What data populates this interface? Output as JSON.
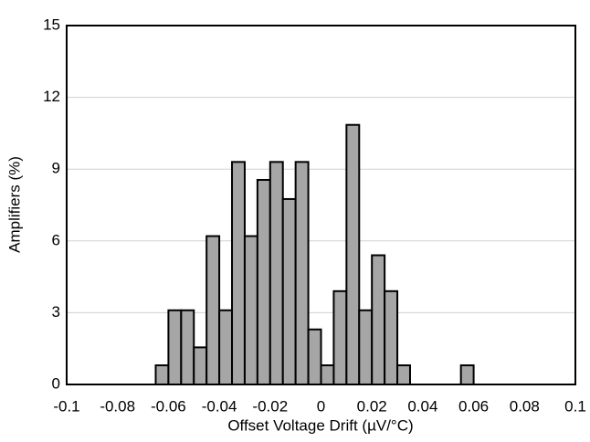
{
  "chart_data": {
    "type": "histogram",
    "xlabel": "Offset Voltage Drift (µV/°C)",
    "ylabel": "Amplifiers (%)",
    "bins": [
      -0.1,
      -0.095,
      -0.09,
      -0.085,
      -0.08,
      -0.075,
      -0.07,
      -0.065,
      -0.06,
      -0.055,
      -0.05,
      -0.045,
      -0.04,
      -0.035,
      -0.03,
      -0.025,
      -0.02,
      -0.015,
      -0.01,
      -0.005,
      0,
      0.005,
      0.01,
      0.015,
      0.02,
      0.025,
      0.03,
      0.035,
      0.04,
      0.045,
      0.05,
      0.055,
      0.06,
      0.065,
      0.07,
      0.075,
      0.08,
      0.085,
      0.09,
      0.095,
      0.1
    ],
    "values": [
      0,
      0,
      0,
      0,
      0,
      0,
      0,
      0.8,
      3.1,
      3.1,
      1.55,
      6.2,
      3.1,
      9.3,
      6.2,
      8.55,
      9.3,
      7.75,
      9.3,
      2.3,
      0.8,
      3.9,
      10.85,
      3.1,
      5.4,
      3.9,
      0.8,
      0,
      0,
      0,
      0,
      0.8,
      0,
      0,
      0,
      0,
      0,
      0,
      0,
      0
    ],
    "color": "#a6a6a6",
    "xlim": [
      -0.1,
      0.1
    ],
    "xticks": [
      -0.1,
      -0.08,
      -0.06,
      -0.04,
      -0.02,
      0,
      0.02,
      0.04,
      0.06,
      0.08,
      0.1
    ],
    "ylim": [
      0,
      15
    ],
    "yticks": [
      0,
      3,
      6,
      9,
      12,
      15
    ],
    "grid": true
  }
}
